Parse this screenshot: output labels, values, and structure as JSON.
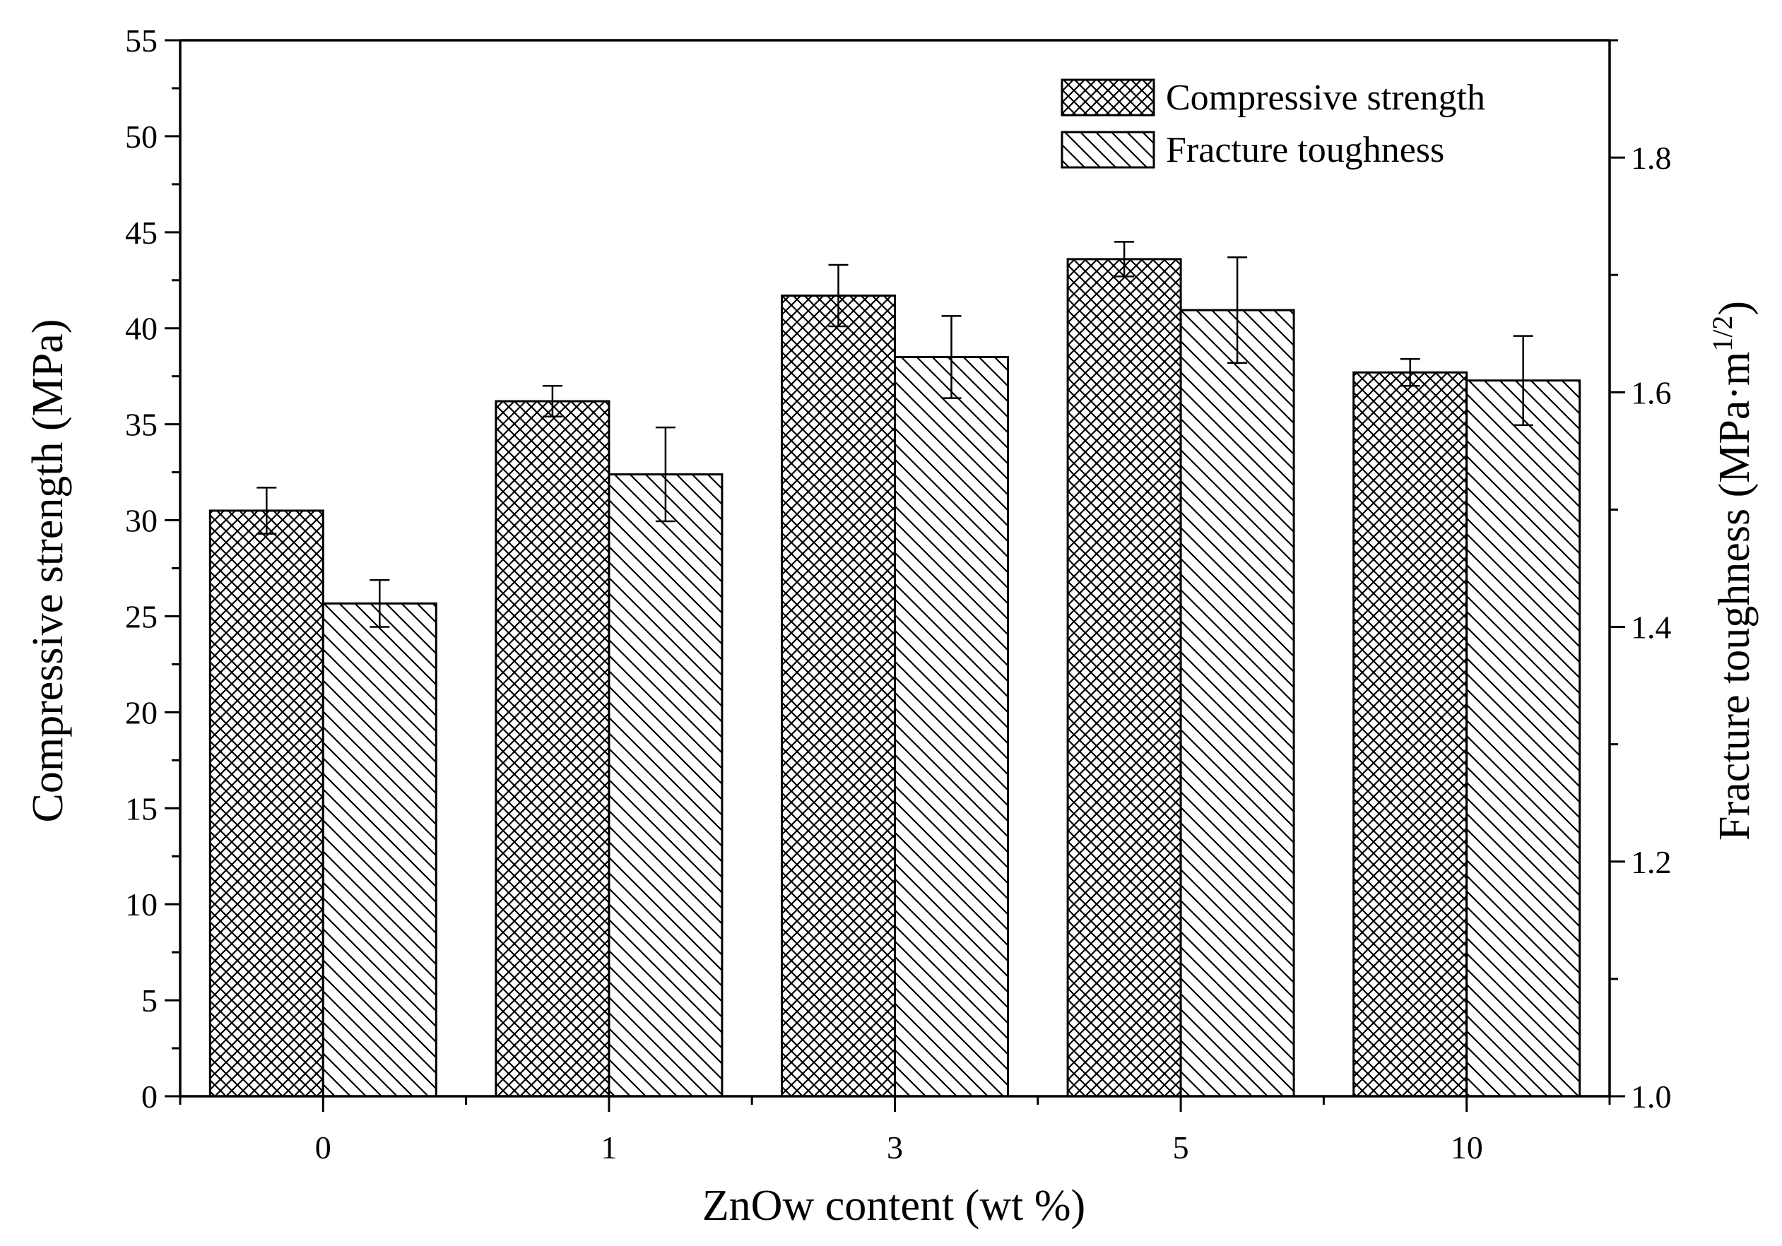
{
  "chart_data": {
    "type": "bar",
    "categories": [
      "0",
      "1",
      "3",
      "5",
      "10"
    ],
    "xlabel": "ZnOw content (wt %)",
    "ylabel": "Compressive strength (MPa)",
    "ylabel_right": {
      "text": "Fracture toughness (MPa·m",
      "sup": "1/2",
      "close": ")"
    },
    "ylim": [
      0,
      55
    ],
    "ylim_right": [
      1.0,
      1.9
    ],
    "yticks": [
      0,
      5,
      10,
      15,
      20,
      25,
      30,
      35,
      40,
      45,
      50,
      55
    ],
    "yticks_right": [
      "1.0",
      "1.2",
      "1.4",
      "1.6",
      "1.8"
    ],
    "legend_position": "top-right",
    "grid": false,
    "series": [
      {
        "name": "Compressive strength",
        "axis": "left",
        "pattern": "crosshatch",
        "values": [
          30.5,
          36.2,
          41.7,
          43.6,
          37.7
        ],
        "errors": [
          1.2,
          0.8,
          1.6,
          0.9,
          0.7
        ]
      },
      {
        "name": "Fracture toughness",
        "axis": "right",
        "pattern": "diagonal",
        "values": [
          1.42,
          1.53,
          1.63,
          1.67,
          1.61
        ],
        "errors": [
          0.02,
          0.04,
          0.035,
          0.045,
          0.038
        ]
      }
    ],
    "colors": {
      "bar_fill": "#ffffff",
      "stroke": "#000000"
    }
  }
}
